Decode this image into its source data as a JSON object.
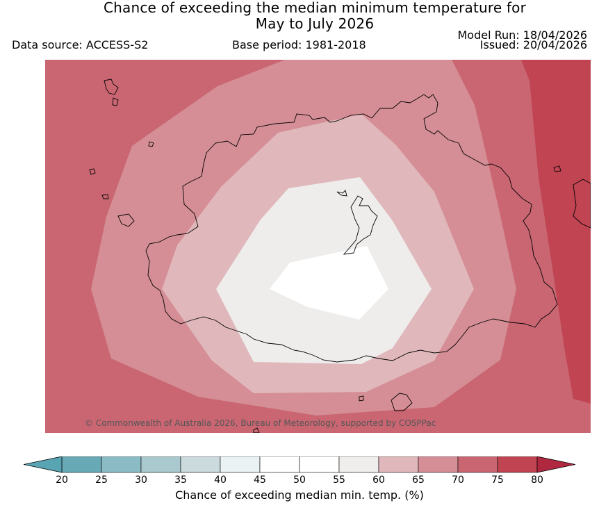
{
  "header": {
    "title_line1": "Chance of exceeding the median minimum temperature for",
    "title_line2": "May to July 2026",
    "data_source": "Data source: ACCESS-S2",
    "base_period": "Base period: 1981-2018",
    "model_run": "Model Run: 18/04/2026",
    "issued": "Issued: 20/04/2026"
  },
  "map": {
    "copyright": "© Commonwealth of Australia 2026, Bureau of Meteorology, supported by COSPPac",
    "zones": [
      {
        "name": "70-75",
        "color": "#c96672"
      },
      {
        "name": "75-80",
        "color": "#c04452"
      },
      {
        "name": "65-70",
        "color": "#d58e95"
      },
      {
        "name": "60-65",
        "color": "#e0b8bc"
      },
      {
        "name": "55-60",
        "color": "#eeedec"
      },
      {
        "name": "50-55",
        "color": "#ffffff"
      }
    ],
    "coastline_color": "#000000"
  },
  "colorbar": {
    "ticks": [
      "20",
      "25",
      "30",
      "35",
      "40",
      "45",
      "50",
      "55",
      "60",
      "65",
      "70",
      "75",
      "80"
    ],
    "colors": [
      "#68a9b6",
      "#8bbcc6",
      "#a9c9ce",
      "#cadadd",
      "#ebf2f4",
      "#ffffff",
      "#ffffff",
      "#efeeed",
      "#e0b8bc",
      "#d58e95",
      "#c96672",
      "#c04452"
    ],
    "under_color": "#58a4b3",
    "over_color": "#b02840",
    "label": "Chance of exceeding median min. temp. (%)"
  }
}
